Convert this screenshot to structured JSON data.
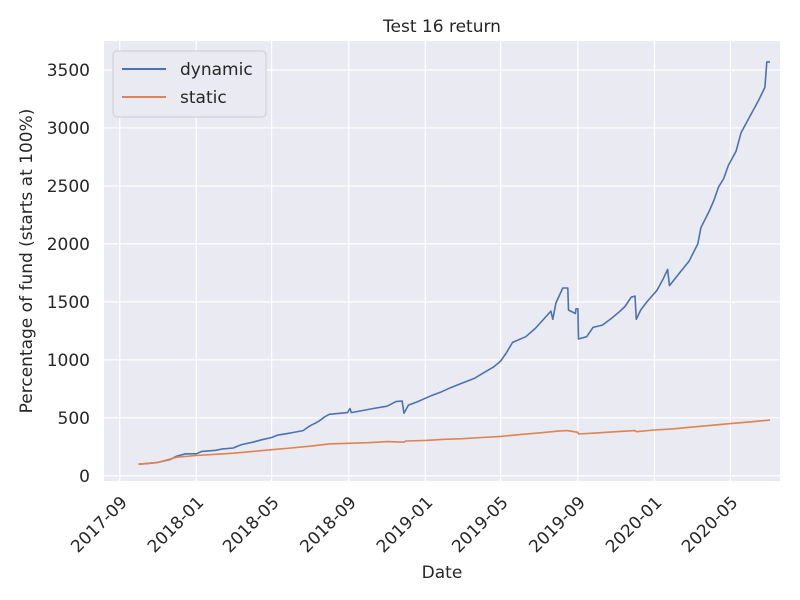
{
  "chart_data": {
    "type": "line",
    "title": "Test 16 return",
    "xlabel": "Date",
    "ylabel": "Percentage of fund (starts at 100%)",
    "ylim": [
      -45,
      3750
    ],
    "xlim": [
      "2017-08-07",
      "2020-07-19"
    ],
    "yticks": [
      0,
      500,
      1000,
      1500,
      2000,
      2500,
      3000,
      3500
    ],
    "xticks": [
      "2017-09",
      "2018-01",
      "2018-05",
      "2018-09",
      "2019-01",
      "2019-05",
      "2019-09",
      "2020-01",
      "2020-05"
    ],
    "grid": true,
    "legend_position": "top-left",
    "series": [
      {
        "name": "dynamic",
        "color": "#4c72b0",
        "points": [
          [
            "2017-10-01",
            100
          ],
          [
            "2017-10-15",
            105
          ],
          [
            "2017-11-01",
            115
          ],
          [
            "2017-11-20",
            140
          ],
          [
            "2017-12-01",
            170
          ],
          [
            "2017-12-15",
            190
          ],
          [
            "2018-01-01",
            190
          ],
          [
            "2018-01-10",
            210
          ],
          [
            "2018-02-01",
            220
          ],
          [
            "2018-02-10",
            230
          ],
          [
            "2018-03-01",
            240
          ],
          [
            "2018-03-10",
            260
          ],
          [
            "2018-03-15",
            270
          ],
          [
            "2018-04-01",
            290
          ],
          [
            "2018-04-15",
            310
          ],
          [
            "2018-05-01",
            330
          ],
          [
            "2018-05-10",
            350
          ],
          [
            "2018-06-01",
            370
          ],
          [
            "2018-06-20",
            390
          ],
          [
            "2018-07-01",
            430
          ],
          [
            "2018-07-15",
            470
          ],
          [
            "2018-07-25",
            510
          ],
          [
            "2018-08-01",
            530
          ],
          [
            "2018-08-30",
            545
          ],
          [
            "2018-09-03",
            580
          ],
          [
            "2018-09-05",
            545
          ],
          [
            "2018-09-20",
            560
          ],
          [
            "2018-10-10",
            580
          ],
          [
            "2018-11-01",
            600
          ],
          [
            "2018-11-15",
            640
          ],
          [
            "2018-11-25",
            645
          ],
          [
            "2018-11-28",
            540
          ],
          [
            "2018-12-05",
            610
          ],
          [
            "2018-12-20",
            640
          ],
          [
            "2019-01-10",
            690
          ],
          [
            "2019-01-25",
            720
          ],
          [
            "2019-02-10",
            760
          ],
          [
            "2019-03-01",
            800
          ],
          [
            "2019-03-20",
            840
          ],
          [
            "2019-04-01",
            880
          ],
          [
            "2019-04-20",
            940
          ],
          [
            "2019-05-01",
            990
          ],
          [
            "2019-05-10",
            1060
          ],
          [
            "2019-05-20",
            1150
          ],
          [
            "2019-06-10",
            1200
          ],
          [
            "2019-06-25",
            1270
          ],
          [
            "2019-07-10",
            1360
          ],
          [
            "2019-07-20",
            1420
          ],
          [
            "2019-07-23",
            1350
          ],
          [
            "2019-07-28",
            1490
          ],
          [
            "2019-08-08",
            1620
          ],
          [
            "2019-08-16",
            1620
          ],
          [
            "2019-08-17",
            1430
          ],
          [
            "2019-08-28",
            1400
          ],
          [
            "2019-08-29",
            1440
          ],
          [
            "2019-09-01",
            1440
          ],
          [
            "2019-09-02",
            1180
          ],
          [
            "2019-09-15",
            1200
          ],
          [
            "2019-09-25",
            1280
          ],
          [
            "2019-10-10",
            1300
          ],
          [
            "2019-10-25",
            1360
          ],
          [
            "2019-11-05",
            1410
          ],
          [
            "2019-11-15",
            1460
          ],
          [
            "2019-11-25",
            1540
          ],
          [
            "2019-12-01",
            1550
          ],
          [
            "2019-12-03",
            1350
          ],
          [
            "2019-12-10",
            1430
          ],
          [
            "2019-12-20",
            1500
          ],
          [
            "2020-01-05",
            1600
          ],
          [
            "2020-01-15",
            1700
          ],
          [
            "2020-01-22",
            1780
          ],
          [
            "2020-01-25",
            1640
          ],
          [
            "2020-02-10",
            1750
          ],
          [
            "2020-02-25",
            1850
          ],
          [
            "2020-03-10",
            2000
          ],
          [
            "2020-03-15",
            2140
          ],
          [
            "2020-03-28",
            2280
          ],
          [
            "2020-04-05",
            2380
          ],
          [
            "2020-04-12",
            2490
          ],
          [
            "2020-04-20",
            2560
          ],
          [
            "2020-04-28",
            2680
          ],
          [
            "2020-05-10",
            2800
          ],
          [
            "2020-05-18",
            2960
          ],
          [
            "2020-06-01",
            3100
          ],
          [
            "2020-06-15",
            3240
          ],
          [
            "2020-06-25",
            3350
          ],
          [
            "2020-06-28",
            3570
          ],
          [
            "2020-07-03",
            3570
          ]
        ]
      },
      {
        "name": "static",
        "color": "#dd8452",
        "points": [
          [
            "2017-10-01",
            100
          ],
          [
            "2017-11-01",
            115
          ],
          [
            "2017-12-01",
            160
          ],
          [
            "2018-01-01",
            175
          ],
          [
            "2018-02-01",
            185
          ],
          [
            "2018-03-01",
            195
          ],
          [
            "2018-04-01",
            210
          ],
          [
            "2018-05-01",
            225
          ],
          [
            "2018-06-01",
            240
          ],
          [
            "2018-07-01",
            255
          ],
          [
            "2018-08-01",
            275
          ],
          [
            "2018-09-01",
            280
          ],
          [
            "2018-10-01",
            285
          ],
          [
            "2018-11-01",
            295
          ],
          [
            "2018-11-28",
            290
          ],
          [
            "2018-12-01",
            300
          ],
          [
            "2019-01-01",
            305
          ],
          [
            "2019-02-01",
            315
          ],
          [
            "2019-03-01",
            320
          ],
          [
            "2019-04-01",
            330
          ],
          [
            "2019-05-01",
            340
          ],
          [
            "2019-06-01",
            355
          ],
          [
            "2019-07-01",
            370
          ],
          [
            "2019-08-01",
            385
          ],
          [
            "2019-08-15",
            390
          ],
          [
            "2019-09-01",
            375
          ],
          [
            "2019-09-02",
            360
          ],
          [
            "2019-10-01",
            370
          ],
          [
            "2019-11-01",
            380
          ],
          [
            "2019-12-01",
            390
          ],
          [
            "2019-12-03",
            380
          ],
          [
            "2020-01-01",
            395
          ],
          [
            "2020-02-01",
            405
          ],
          [
            "2020-03-01",
            420
          ],
          [
            "2020-04-01",
            435
          ],
          [
            "2020-05-01",
            450
          ],
          [
            "2020-06-01",
            465
          ],
          [
            "2020-07-03",
            480
          ]
        ]
      }
    ]
  }
}
